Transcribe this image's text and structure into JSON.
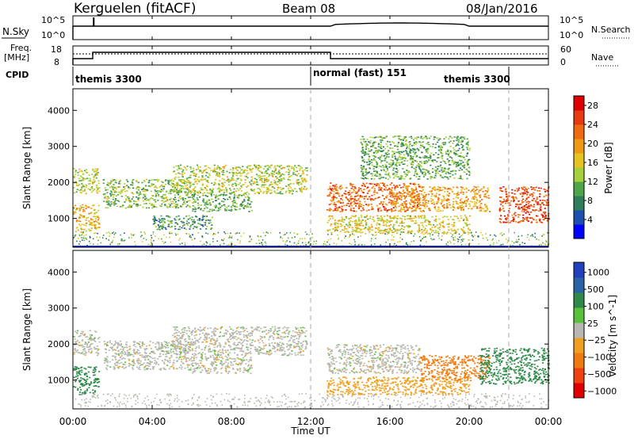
{
  "header": {
    "station": "Kerguelen (fitACF)",
    "beam": "Beam 08",
    "date": "08/Jan/2016"
  },
  "left_labels": {
    "nsky": "N.Sky",
    "freq": "Freq.",
    "freq_unit": "[MHz]",
    "cpid": "CPID"
  },
  "right_labels": {
    "nsearch": "N.Search",
    "nave": "Nave"
  },
  "noise_panel": {
    "ticks_left": [
      "10^5",
      "10^0"
    ],
    "ticks_right": [
      "10^5",
      "10^0"
    ]
  },
  "freq_panel": {
    "ticks_left": [
      "18",
      "8"
    ],
    "ticks_right": [
      "60",
      "0"
    ]
  },
  "cpid_segments": [
    {
      "label": "themis 3300",
      "start_hour": 0.0
    },
    {
      "label": "normal (fast) 151",
      "start_hour": 12.0
    },
    {
      "label": "themis 3300",
      "start_hour": 22.0
    }
  ],
  "x_axis": {
    "label": "Time UT",
    "ticks": [
      "00:00",
      "04:00",
      "08:00",
      "12:00",
      "16:00",
      "20:00",
      "00:00"
    ],
    "hours": [
      0,
      4,
      8,
      12,
      16,
      20,
      24
    ]
  },
  "colors": {
    "power_scale": [
      "#0000ff",
      "#1c4fb0",
      "#2e7d5b",
      "#4fa64a",
      "#a6d13a",
      "#e6c31e",
      "#f09a14",
      "#f06a10",
      "#e83a10",
      "#e00000"
    ],
    "velocity_scale": [
      "#2040c0",
      "#2a63a8",
      "#2f8a4a",
      "#59c23a",
      "#b8b8b0",
      "#f0a020",
      "#f07a10",
      "#f04010",
      "#e00000"
    ]
  },
  "chart_data": [
    {
      "type": "heatmap",
      "title": "",
      "xlabel": "Time UT",
      "ylabel": "Slant Range [km]",
      "ylim": [
        200,
        4600
      ],
      "y_ticks": [
        "1000",
        "2000",
        "3000",
        "4000"
      ],
      "y_tick_values": [
        1000,
        2000,
        3000,
        4000
      ],
      "colorbar_label": "Power [dB]",
      "colorbar_ticks": [
        "4",
        "8",
        "12",
        "16",
        "20",
        "24",
        "28"
      ],
      "colorbar_range": [
        0,
        30
      ],
      "scatter_regions": [
        {
          "t_start": 0.0,
          "t_end": 1.3,
          "r_low": 600,
          "r_high": 1400,
          "value": 18
        },
        {
          "t_start": 0.0,
          "t_end": 1.3,
          "r_low": 1700,
          "r_high": 2400,
          "value": 14
        },
        {
          "t_start": 1.5,
          "t_end": 6.0,
          "r_low": 1300,
          "r_high": 2100,
          "value": 12
        },
        {
          "t_start": 5.0,
          "t_end": 11.8,
          "r_low": 1700,
          "r_high": 2500,
          "value": 14
        },
        {
          "t_start": 6.0,
          "t_end": 9.0,
          "r_low": 1200,
          "r_high": 1700,
          "value": 10
        },
        {
          "t_start": 4.0,
          "t_end": 7.0,
          "r_low": 700,
          "r_high": 1100,
          "value": 8
        },
        {
          "t_start": 12.8,
          "t_end": 17.5,
          "r_low": 1200,
          "r_high": 2000,
          "value": 24
        },
        {
          "t_start": 12.8,
          "t_end": 20.0,
          "r_low": 600,
          "r_high": 1100,
          "value": 16
        },
        {
          "t_start": 14.5,
          "t_end": 20.0,
          "r_low": 2100,
          "r_high": 3300,
          "value": 10
        },
        {
          "t_start": 16.0,
          "t_end": 21.0,
          "r_low": 1200,
          "r_high": 1900,
          "value": 20
        },
        {
          "t_start": 21.5,
          "t_end": 24.0,
          "r_low": 900,
          "r_high": 1900,
          "value": 26
        }
      ]
    },
    {
      "type": "heatmap",
      "title": "",
      "xlabel": "Time UT",
      "ylabel": "Slant Range [km]",
      "ylim": [
        200,
        4600
      ],
      "y_ticks": [
        "1000",
        "2000",
        "3000",
        "4000"
      ],
      "y_tick_values": [
        1000,
        2000,
        3000,
        4000
      ],
      "colorbar_label": "Velocity [m s^-1]",
      "colorbar_ticks": [
        "1000",
        "500",
        "100",
        "25",
        "−25",
        "−100",
        "−500",
        "−1000"
      ],
      "scatter_regions": [
        {
          "t_start": 0.0,
          "t_end": 1.3,
          "r_low": 600,
          "r_high": 1400,
          "value": 150
        },
        {
          "t_start": 0.0,
          "t_end": 1.3,
          "r_low": 1700,
          "r_high": 2400,
          "value": 0
        },
        {
          "t_start": 1.5,
          "t_end": 6.0,
          "r_low": 1300,
          "r_high": 2100,
          "value": 0
        },
        {
          "t_start": 5.0,
          "t_end": 11.8,
          "r_low": 1700,
          "r_high": 2500,
          "value": 0
        },
        {
          "t_start": 6.0,
          "t_end": 9.0,
          "r_low": 1200,
          "r_high": 1700,
          "value": 0
        },
        {
          "t_start": 12.8,
          "t_end": 17.5,
          "r_low": 1200,
          "r_high": 2000,
          "value": 0
        },
        {
          "t_start": 12.8,
          "t_end": 20.0,
          "r_low": 600,
          "r_high": 1100,
          "value": -60
        },
        {
          "t_start": 17.5,
          "t_end": 21.0,
          "r_low": 1000,
          "r_high": 1700,
          "value": -300
        },
        {
          "t_start": 20.5,
          "t_end": 24.0,
          "r_low": 900,
          "r_high": 1900,
          "value": 150
        }
      ]
    }
  ]
}
